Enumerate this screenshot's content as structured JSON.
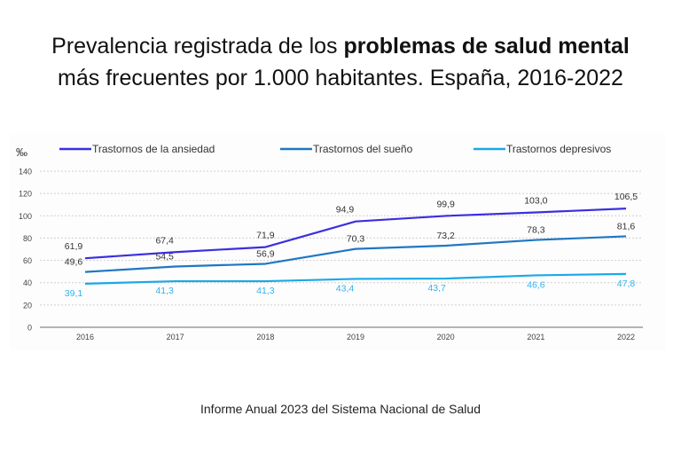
{
  "header": {
    "title_part1": "Prevalencia registrada de los ",
    "title_bold": "problemas de salud mental",
    "title_line2": "más frecuentes por 1.000 habitantes. España, 2016-2022"
  },
  "footer": {
    "source": "Informe Anual 2023 del Sistema Nacional de Salud"
  },
  "chart_data": {
    "type": "line",
    "title": "Prevalencia registrada de los problemas de salud mental más frecuentes por 1.000 habitantes. España, 2016-2022",
    "xlabel": "",
    "ylabel": "‰",
    "x": [
      "2016",
      "2017",
      "2018",
      "2019",
      "2020",
      "2021",
      "2022"
    ],
    "ylim": [
      0,
      140
    ],
    "yticks": [
      0,
      20,
      40,
      60,
      80,
      100,
      120,
      140
    ],
    "grid": true,
    "legend_position": "top",
    "series": [
      {
        "name": "Trastornos de la ansiedad",
        "color": "#3b2fe0",
        "label_color": "#333333",
        "values": [
          61.9,
          67.4,
          71.9,
          94.9,
          99.9,
          103.0,
          106.5
        ],
        "labels": [
          "61,9",
          "67,4",
          "71,9",
          "94,9",
          "99,9",
          "103,0",
          "106,5"
        ]
      },
      {
        "name": "Trastornos del sueño",
        "color": "#1f77c4",
        "label_color": "#333333",
        "values": [
          49.6,
          54.5,
          56.9,
          70.3,
          73.2,
          78.3,
          81.6
        ],
        "labels": [
          "49,6",
          "54,5",
          "56,9",
          "70,3",
          "73,2",
          "78,3",
          "81,6"
        ]
      },
      {
        "name": "Trastornos depresivos",
        "color": "#1aa8e8",
        "label_color": "#2fb4f0",
        "values": [
          39.1,
          41.3,
          41.3,
          43.4,
          43.7,
          46.6,
          47.8
        ],
        "labels": [
          "39,1",
          "41,3",
          "41,3",
          "43,4",
          "43,7",
          "46,6",
          "47,8"
        ]
      }
    ]
  }
}
